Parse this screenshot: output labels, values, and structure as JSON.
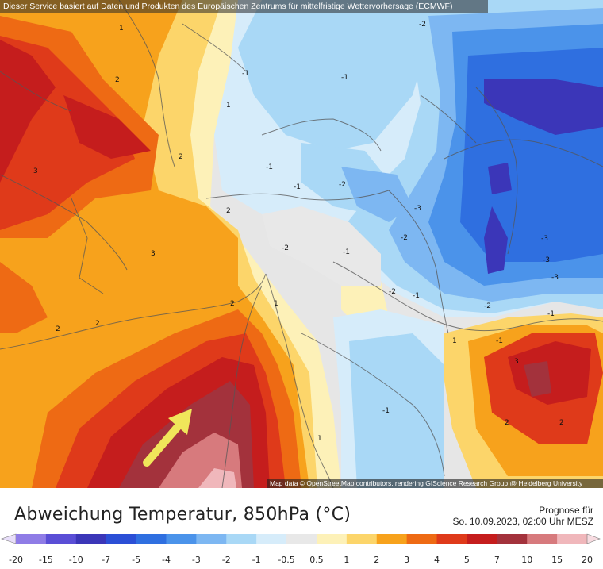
{
  "header": {
    "service_note": "Dieser Service basiert auf Daten und Produkten des Europäischen Zentrums für mittelfristige Wettervorhersage (ECMWF)"
  },
  "map": {
    "attribution": "Map data © OpenStreetMap contributors, rendering GIScience Research Group @ Heidelberg University",
    "contour_labels": [
      {
        "text": "-2"
      },
      {
        "text": "1"
      },
      {
        "text": "2"
      },
      {
        "text": "3"
      },
      {
        "text": "2"
      },
      {
        "text": "-1"
      },
      {
        "text": "-1"
      },
      {
        "text": "-1"
      },
      {
        "text": "-1"
      },
      {
        "text": "-2"
      },
      {
        "text": "-3"
      },
      {
        "text": "-2"
      },
      {
        "text": "-3"
      },
      {
        "text": "-3"
      },
      {
        "text": "-3"
      },
      {
        "text": "-2"
      },
      {
        "text": "-2"
      },
      {
        "text": "-1"
      },
      {
        "text": "-1"
      },
      {
        "text": "-2"
      },
      {
        "text": "-1"
      },
      {
        "text": "1"
      },
      {
        "text": "3"
      },
      {
        "text": "2"
      },
      {
        "text": "2"
      },
      {
        "text": "2"
      },
      {
        "text": "1"
      },
      {
        "text": "2"
      },
      {
        "text": "3"
      },
      {
        "text": "1"
      },
      {
        "text": "2"
      },
      {
        "text": "2"
      },
      {
        "text": "-1"
      },
      {
        "text": "1"
      },
      {
        "text": "-1"
      }
    ],
    "arrow_color": "#f0e65a"
  },
  "footer": {
    "title": "Abweichung Temperatur, 850hPa (°C)",
    "forecast_label": "Prognose für",
    "forecast_date": "So. 10.09.2023, 02:00 Uhr MESZ"
  },
  "legend": {
    "bins": [
      {
        "label": "-20",
        "color": "#c7b3f0"
      },
      {
        "label": "-15",
        "color": "#8f7ce6"
      },
      {
        "label": "-10",
        "color": "#5a4ed6"
      },
      {
        "label": "-7",
        "color": "#3b36b8"
      },
      {
        "label": "-5",
        "color": "#2b4fd6"
      },
      {
        "label": "-4",
        "color": "#2f6fe0"
      },
      {
        "label": "-3",
        "color": "#4b93ea"
      },
      {
        "label": "-2",
        "color": "#7db7f2"
      },
      {
        "label": "-1",
        "color": "#a9d8f6"
      },
      {
        "label": "-0.5",
        "color": "#d6ecfa"
      },
      {
        "label": "0.5",
        "color": "#e8e8e8"
      },
      {
        "label": "1",
        "color": "#fdf1b8"
      },
      {
        "label": "2",
        "color": "#fcd56a"
      },
      {
        "label": "3",
        "color": "#f7a21c"
      },
      {
        "label": "4",
        "color": "#ee6a14"
      },
      {
        "label": "5",
        "color": "#df3a1a"
      },
      {
        "label": "7",
        "color": "#c51d1d"
      },
      {
        "label": "10",
        "color": "#a3323c"
      },
      {
        "label": "15",
        "color": "#d77a7d"
      },
      {
        "label": "20",
        "color": "#f0b7bb"
      }
    ]
  }
}
